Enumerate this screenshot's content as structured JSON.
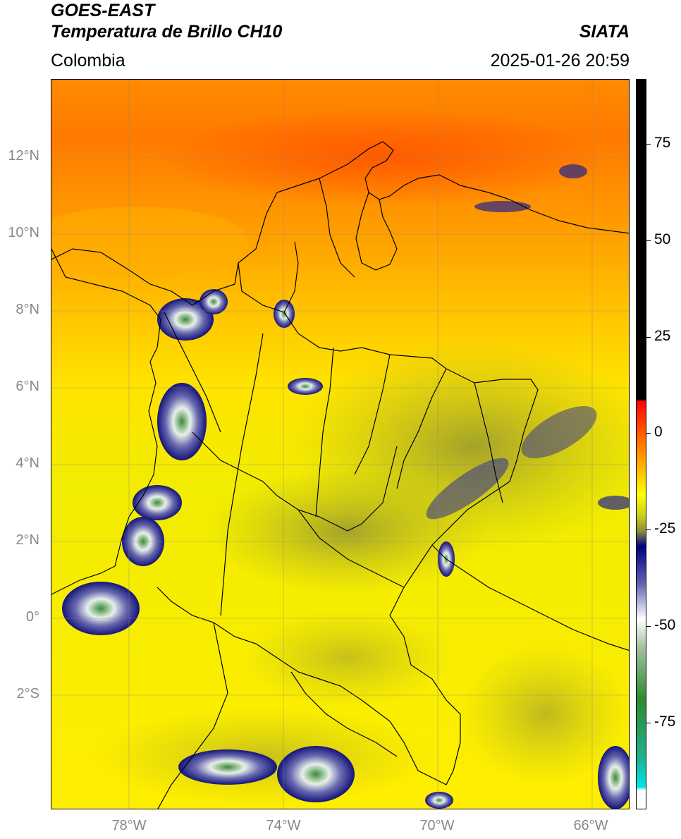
{
  "header": {
    "title_line1": "GOES-EAST",
    "title_line2": "Temperatura de Brillo CH10",
    "organization": "SIATA",
    "region": "Colombia",
    "datetime": "2025-01-26 20:59"
  },
  "map": {
    "lat_labels": [
      "12°N",
      "10°N",
      "8°N",
      "6°N",
      "4°N",
      "2°N",
      "0°",
      "2°S"
    ],
    "lon_labels": [
      "78°W",
      "74°W",
      "70°W",
      "66°W"
    ],
    "extent": {
      "lon_min": -80.0,
      "lon_max": -65.0,
      "lat_min": -5.0,
      "lat_max": 14.0
    }
  },
  "colorbar": {
    "labels": [
      "75",
      "50",
      "25",
      "0",
      "-25",
      "-50",
      "-75"
    ],
    "range": [
      -100,
      90
    ],
    "colors": {
      "hot": "#000000",
      "red": "#ff0000",
      "orange": "#ff8c00",
      "yellow": "#ffff00",
      "olive": "#8a8a3a",
      "navy": "#000080",
      "white": "#ffffff",
      "green": "#2e8b2e",
      "cyan": "#00e5e5"
    }
  }
}
